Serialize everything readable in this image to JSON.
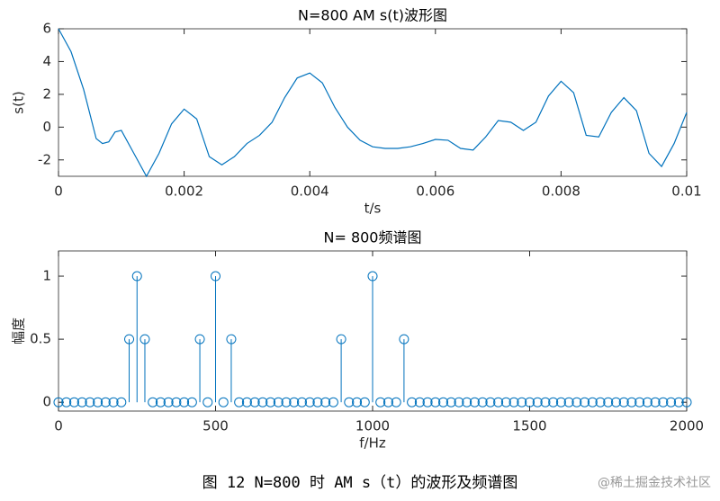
{
  "chart_data": [
    {
      "type": "line",
      "title": "N=800 AM s(t)波形图",
      "xlabel": "t/s",
      "ylabel": "s(t)",
      "color": "#0072bd",
      "x": [
        0,
        0.0002,
        0.0004,
        0.0006,
        0.0007,
        0.0008,
        0.0009,
        0.001,
        0.0012,
        0.0014,
        0.0016,
        0.0018,
        0.002,
        0.0022,
        0.0024,
        0.0026,
        0.0028,
        0.003,
        0.0032,
        0.0034,
        0.0036,
        0.0038,
        0.004,
        0.0042,
        0.0044,
        0.0046,
        0.0048,
        0.005,
        0.0052,
        0.0054,
        0.0056,
        0.0058,
        0.006,
        0.0062,
        0.0064,
        0.0066,
        0.0068,
        0.007,
        0.0072,
        0.0074,
        0.0076,
        0.0078,
        0.008,
        0.0082,
        0.0084,
        0.0086,
        0.0088,
        0.009,
        0.0092,
        0.0094,
        0.0096,
        0.0098,
        0.01
      ],
      "values": [
        6,
        4.6,
        2.3,
        -0.7,
        -1.0,
        -0.9,
        -0.3,
        -0.2,
        -1.6,
        -3.0,
        -1.6,
        0.2,
        1.1,
        0.5,
        -1.8,
        -2.3,
        -1.8,
        -1.0,
        -0.5,
        0.3,
        1.8,
        3.0,
        3.3,
        2.7,
        1.2,
        0.0,
        -0.8,
        -1.2,
        -1.3,
        -1.3,
        -1.2,
        -1.0,
        -0.75,
        -0.8,
        -1.3,
        -1.4,
        -0.6,
        0.4,
        0.3,
        -0.2,
        0.3,
        1.9,
        2.8,
        2.1,
        -0.5,
        -0.6,
        0.9,
        1.8,
        1.0,
        -1.6,
        -2.4,
        -1.0,
        0.9
      ],
      "xlim": [
        0,
        0.01
      ],
      "xticks": [
        0,
        0.002,
        0.004,
        0.006,
        0.008,
        0.01
      ],
      "ylim": [
        -3,
        6
      ],
      "yticks": [
        -2,
        0,
        2,
        4,
        6
      ]
    },
    {
      "type": "stem",
      "title": "N= 800频谱图",
      "xlabel": "f/Hz",
      "ylabel": "幅度",
      "color": "#0072bd",
      "x": [
        0,
        25,
        50,
        75,
        100,
        125,
        150,
        175,
        200,
        225,
        250,
        275,
        300,
        325,
        350,
        375,
        400,
        425,
        450,
        475,
        500,
        525,
        550,
        575,
        600,
        625,
        650,
        675,
        700,
        725,
        750,
        775,
        800,
        825,
        850,
        875,
        900,
        925,
        950,
        975,
        1000,
        1025,
        1050,
        1075,
        1100,
        1125,
        1150,
        1175,
        1200,
        1225,
        1250,
        1275,
        1300,
        1325,
        1350,
        1375,
        1400,
        1425,
        1450,
        1475,
        1500,
        1525,
        1550,
        1575,
        1600,
        1625,
        1650,
        1675,
        1700,
        1725,
        1750,
        1775,
        1800,
        1825,
        1850,
        1875,
        1900,
        1925,
        1950,
        1975,
        2000
      ],
      "values": [
        0,
        0,
        0,
        0,
        0,
        0,
        0,
        0,
        0,
        0.5,
        1,
        0.5,
        0,
        0,
        0,
        0,
        0,
        0,
        0.5,
        0,
        1,
        0,
        0.5,
        0,
        0,
        0,
        0,
        0,
        0,
        0,
        0,
        0,
        0,
        0,
        0,
        0,
        0.5,
        0,
        0,
        0,
        1,
        0,
        0,
        0,
        0.5,
        0,
        0,
        0,
        0,
        0,
        0,
        0,
        0,
        0,
        0,
        0,
        0,
        0,
        0,
        0,
        0,
        0,
        0,
        0,
        0,
        0,
        0,
        0,
        0,
        0,
        0,
        0,
        0,
        0,
        0,
        0,
        0,
        0,
        0,
        0,
        0
      ],
      "xlim": [
        0,
        2000
      ],
      "xticks": [
        0,
        500,
        1000,
        1500,
        2000
      ],
      "ylim": [
        -0.07,
        1.2
      ],
      "yticks": [
        0,
        0.5,
        1
      ]
    }
  ],
  "caption": "图 12 N=800 时 AM s（t）的波形及频谱图",
  "watermark": "@稀土掘金技术社区"
}
